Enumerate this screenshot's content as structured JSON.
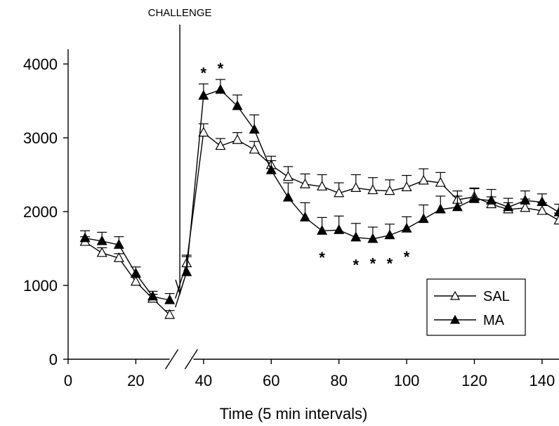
{
  "chart_data": {
    "type": "line",
    "xlabel": "Time (5 min intervals)",
    "ylabel": "",
    "xlim": [
      0,
      145
    ],
    "ylim": [
      0,
      4200
    ],
    "x_ticks": [
      0,
      20,
      40,
      60,
      80,
      100,
      120,
      140
    ],
    "y_ticks": [
      0,
      1000,
      2000,
      3000,
      4000
    ],
    "axis_break": [
      30,
      37
    ],
    "annotation": {
      "text": "CHALLENGE",
      "x": 33
    },
    "legend_position": "lower-right",
    "series": [
      {
        "name": "SAL",
        "marker": "open-triangle",
        "segments": [
          {
            "x": [
              5,
              10,
              15,
              20,
              25,
              30
            ],
            "y": [
              1590,
              1440,
              1370,
              1050,
              820,
              600
            ],
            "err": [
              70,
              70,
              60,
              60,
              60,
              60
            ]
          },
          {
            "x": [
              35,
              40,
              45,
              50,
              55,
              60,
              65,
              70,
              75,
              80,
              85,
              90,
              95,
              100,
              105,
              110,
              115,
              120,
              125,
              130,
              135,
              140,
              145
            ],
            "y": [
              1300,
              3070,
              2890,
              2970,
              2840,
              2630,
              2470,
              2370,
              2340,
              2250,
              2320,
              2290,
              2280,
              2330,
              2420,
              2390,
              2160,
              2200,
              2100,
              2030,
              2050,
              2010,
              1880
            ],
            "err": [
              90,
              120,
              100,
              100,
              110,
              120,
              140,
              140,
              160,
              140,
              180,
              170,
              150,
              160,
              160,
              140,
              120,
              110,
              100,
              90,
              120,
              110,
              100
            ]
          }
        ]
      },
      {
        "name": "MA",
        "marker": "filled-triangle",
        "segments": [
          {
            "x": [
              5,
              10,
              15,
              20,
              25,
              30
            ],
            "y": [
              1640,
              1600,
              1550,
              1160,
              850,
              800
            ],
            "err": [
              100,
              120,
              110,
              90,
              70,
              90
            ]
          },
          {
            "x": [
              35,
              40,
              45,
              50,
              55,
              60,
              65,
              70,
              75,
              80,
              85,
              90,
              95,
              100,
              105,
              110,
              115,
              120,
              125,
              130,
              135,
              140,
              145
            ],
            "y": [
              1180,
              3570,
              3650,
              3430,
              3110,
              2560,
              2190,
              1920,
              1740,
              1750,
              1650,
              1630,
              1680,
              1770,
              1900,
              2030,
              2060,
              2170,
              2150,
              2060,
              2150,
              2130,
              1990
            ],
            "err": [
              230,
              160,
              140,
              150,
              200,
              130,
              200,
              200,
              180,
              190,
              190,
              160,
              150,
              160,
              190,
              180,
              150,
              150,
              150,
              120,
              130,
              110,
              110
            ]
          }
        ]
      }
    ],
    "significance_markers": [
      {
        "x": 40,
        "y": 3920,
        "text": "*"
      },
      {
        "x": 45,
        "y": 3980,
        "text": "*"
      },
      {
        "x": 75,
        "y": 1420,
        "text": "*"
      },
      {
        "x": 85,
        "y": 1320,
        "text": "*"
      },
      {
        "x": 90,
        "y": 1340,
        "text": "*"
      },
      {
        "x": 95,
        "y": 1340,
        "text": "*"
      },
      {
        "x": 100,
        "y": 1430,
        "text": "*"
      }
    ]
  }
}
